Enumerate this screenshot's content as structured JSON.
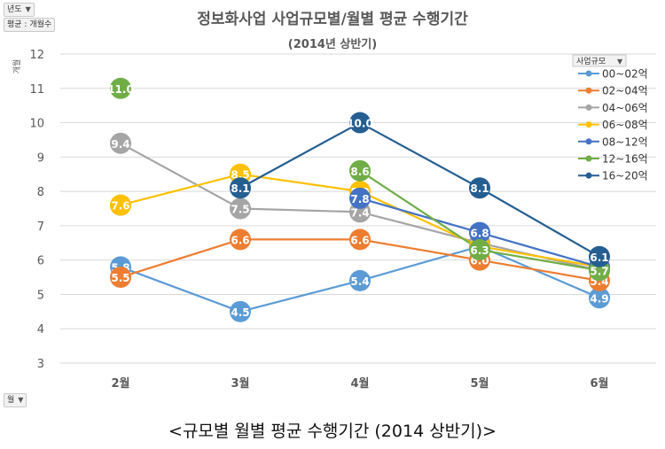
{
  "pivot": {
    "year_button": "년도",
    "value_button": "평균 : 개월수",
    "filter_icon": "funnel-icon",
    "axis_field_button": "월",
    "legend_field_button": "사업규모"
  },
  "caption": "<규모별 월별 평균 수행기간 (2014 상반기)>",
  "chart_data": {
    "type": "line",
    "title": "정보화사업 사업규모별/월별 평균 수행기간",
    "subtitle": "(2014년 상반기)",
    "ylabel": "개월",
    "xlabel": "",
    "categories": [
      "2월",
      "3월",
      "4월",
      "5월",
      "6월"
    ],
    "ylim": [
      3,
      12
    ],
    "yticks": [
      3,
      4,
      5,
      6,
      7,
      8,
      9,
      10,
      11,
      12
    ],
    "grid": true,
    "legend_position": "top-right",
    "legend_title": "사업규모",
    "series": [
      {
        "name": "00~02억",
        "color": "#5b9bd5",
        "values": [
          5.8,
          4.5,
          5.4,
          6.4,
          4.9
        ]
      },
      {
        "name": "02~04억",
        "color": "#ed7d31",
        "values": [
          5.5,
          6.6,
          6.6,
          6.0,
          5.4
        ]
      },
      {
        "name": "04~06억",
        "color": "#a5a5a5",
        "values": [
          9.4,
          7.5,
          7.4,
          6.5,
          5.7
        ]
      },
      {
        "name": "06~08억",
        "color": "#ffc000",
        "values": [
          7.6,
          8.5,
          8.0,
          6.4,
          5.8
        ]
      },
      {
        "name": "08~12억",
        "color": "#4472c4",
        "values": [
          null,
          null,
          7.8,
          6.8,
          5.8
        ]
      },
      {
        "name": "12~16억",
        "color": "#70ad47",
        "values": [
          11.0,
          null,
          8.6,
          6.3,
          5.7
        ]
      },
      {
        "name": "16~20억",
        "color": "#255e91",
        "values": [
          null,
          8.1,
          10.0,
          8.1,
          6.1
        ]
      }
    ]
  }
}
